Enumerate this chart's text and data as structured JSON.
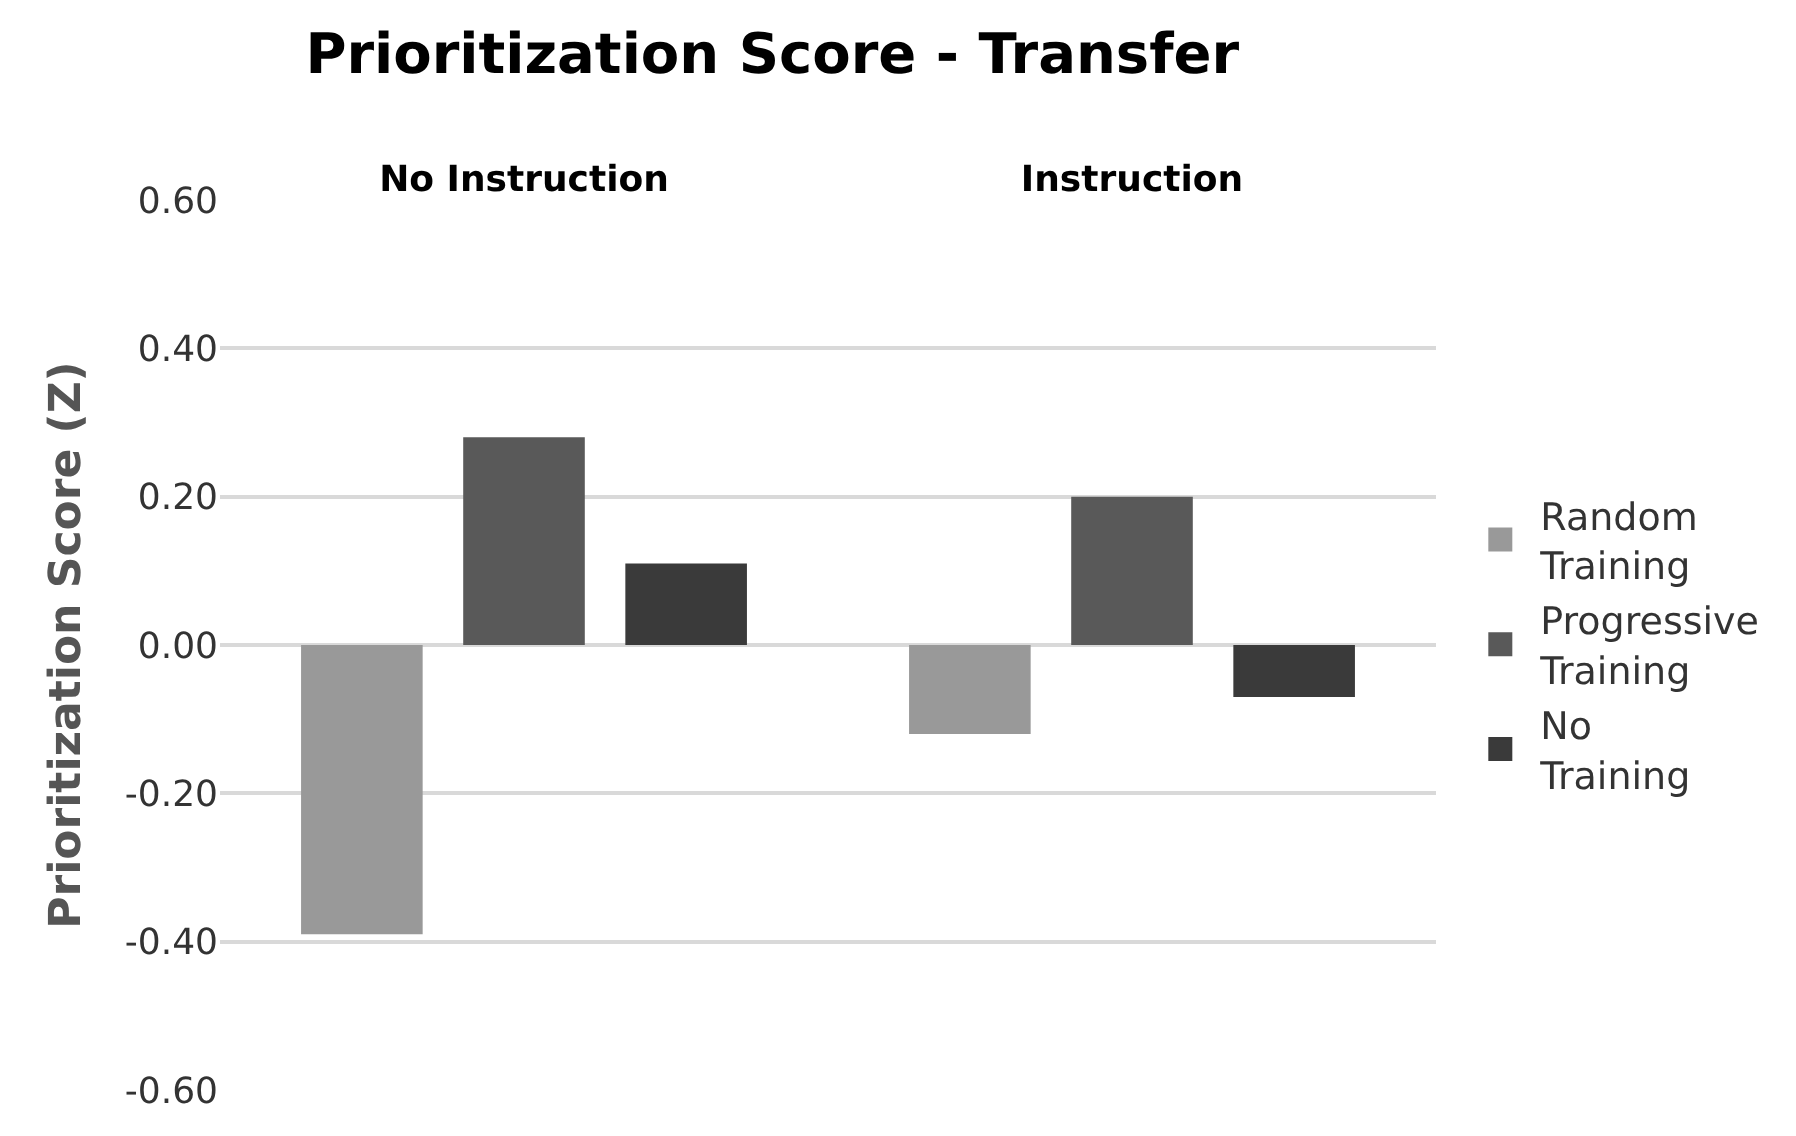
{
  "chart_data": {
    "type": "bar",
    "title": "Prioritization Score - Transfer",
    "ylabel": "Prioritization Score (Z)",
    "categories": [
      "No Instruction",
      "Instruction"
    ],
    "series": [
      {
        "name": "Random Training",
        "color": "#999999",
        "values": [
          -0.39,
          -0.12
        ]
      },
      {
        "name": "Progressive Training",
        "color": "#595959",
        "values": [
          0.28,
          0.2
        ]
      },
      {
        "name": "No Training",
        "color": "#3a3a3a",
        "values": [
          0.11,
          -0.07
        ]
      }
    ],
    "ylim": [
      -0.6,
      0.6
    ],
    "yticks": [
      {
        "value": -0.6,
        "label": "-0.60"
      },
      {
        "value": -0.4,
        "label": "-0.40"
      },
      {
        "value": -0.2,
        "label": "-0.20"
      },
      {
        "value": 0,
        "label": "0.00"
      },
      {
        "value": 0.2,
        "label": "0.20"
      },
      {
        "value": 0.4,
        "label": "0.40"
      },
      {
        "value": 0.6,
        "label": "0.60"
      }
    ],
    "grid": "y",
    "legend": "right"
  }
}
